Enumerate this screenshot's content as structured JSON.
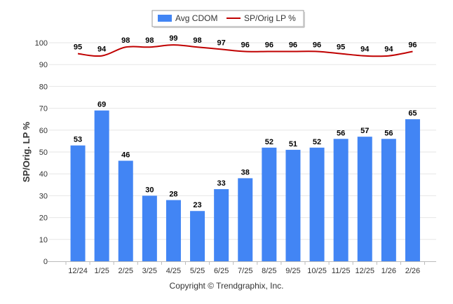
{
  "chart_data": {
    "type": "bar",
    "title": "",
    "ylabel": "SP/Orig. LP %",
    "xlabel": "",
    "ylim": [
      0,
      100
    ],
    "yticks": [
      0,
      10,
      20,
      30,
      40,
      50,
      60,
      70,
      80,
      90,
      100
    ],
    "grid": true,
    "legend_position": "top-center",
    "categories": [
      "12/24",
      "1/25",
      "2/25",
      "3/25",
      "4/25",
      "5/25",
      "6/25",
      "7/25",
      "8/25",
      "9/25",
      "10/25",
      "11/25",
      "12/25",
      "1/26",
      "2/26"
    ],
    "series": [
      {
        "name": "Avg CDOM",
        "type": "bar",
        "color": "#4285f4",
        "values": [
          53,
          69,
          46,
          30,
          28,
          23,
          33,
          38,
          52,
          51,
          52,
          56,
          57,
          56,
          65
        ]
      },
      {
        "name": "SP/Orig LP %",
        "type": "line",
        "color": "#c00000",
        "values": [
          95,
          94,
          98,
          98,
          99,
          98,
          97,
          96,
          96,
          96,
          96,
          95,
          94,
          94,
          96
        ]
      }
    ]
  },
  "copyright": "Copyright © Trendgraphix, Inc."
}
